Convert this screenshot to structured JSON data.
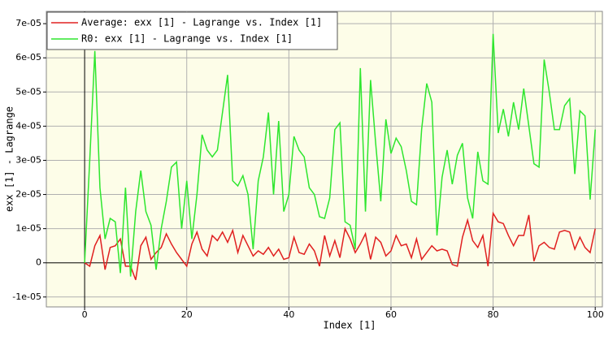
{
  "chart_data": {
    "type": "line",
    "x_label": "Index [1]",
    "y_label": "exx [1] - Lagrange",
    "x": [
      0,
      1,
      2,
      3,
      4,
      5,
      6,
      7,
      8,
      9,
      10,
      11,
      12,
      13,
      14,
      15,
      16,
      17,
      18,
      19,
      20,
      21,
      22,
      23,
      24,
      25,
      26,
      27,
      28,
      29,
      30,
      31,
      32,
      33,
      34,
      35,
      36,
      37,
      38,
      39,
      40,
      41,
      42,
      43,
      44,
      45,
      46,
      47,
      48,
      49,
      50,
      51,
      52,
      53,
      54,
      55,
      56,
      57,
      58,
      59,
      60,
      61,
      62,
      63,
      64,
      65,
      66,
      67,
      68,
      69,
      70,
      71,
      72,
      73,
      74,
      75,
      76,
      77,
      78,
      79,
      80,
      81,
      82,
      83,
      84,
      85,
      86,
      87,
      88,
      89,
      90,
      91,
      92,
      93,
      94,
      95,
      96,
      97,
      98,
      99,
      100
    ],
    "series": [
      {
        "name": "Average: exx [1] - Lagrange vs. Index [1]",
        "color": "#e02020",
        "values": [
          0,
          -1e-06,
          5e-06,
          8e-06,
          -2e-06,
          4.5e-06,
          5e-06,
          7e-06,
          -1e-06,
          -1e-06,
          -5e-06,
          5e-06,
          7.5e-06,
          1e-06,
          3e-06,
          4.5e-06,
          8.5e-06,
          5.5e-06,
          3e-06,
          1e-06,
          -1e-06,
          5.5e-06,
          9e-06,
          4e-06,
          2e-06,
          8e-06,
          6.5e-06,
          9e-06,
          6e-06,
          9.5e-06,
          3e-06,
          8e-06,
          5e-06,
          2e-06,
          3.5e-06,
          2.5e-06,
          4.5e-06,
          2e-06,
          4e-06,
          1e-06,
          1.5e-06,
          7.5e-06,
          3e-06,
          2.5e-06,
          5.5e-06,
          3.5e-06,
          -1e-06,
          8e-06,
          2e-06,
          6.5e-06,
          1.5e-06,
          1e-05,
          7e-06,
          3e-06,
          5.5e-06,
          8.5e-06,
          1e-06,
          7.5e-06,
          6e-06,
          2e-06,
          3.5e-06,
          8e-06,
          5e-06,
          5.5e-06,
          1.5e-06,
          7e-06,
          1e-06,
          3e-06,
          5e-06,
          3.5e-06,
          4e-06,
          3.5e-06,
          -5e-07,
          -1e-06,
          7.5e-06,
          1.25e-05,
          6.5e-06,
          4.5e-06,
          8e-06,
          -1e-06,
          1.45e-05,
          1.2e-05,
          1.15e-05,
          8e-06,
          5e-06,
          8e-06,
          8e-06,
          1.4e-05,
          5e-07,
          5e-06,
          6e-06,
          4.5e-06,
          4e-06,
          9e-06,
          9.5e-06,
          9e-06,
          4e-06,
          7.5e-06,
          4.5e-06,
          3e-06,
          1e-05
        ]
      },
      {
        "name": "R0: exx [1] - Lagrange vs. Index [1]",
        "color": "#2ee62e",
        "values": [
          0,
          3e-05,
          6.2e-05,
          2.2e-05,
          7e-06,
          1.3e-05,
          1.2e-05,
          -3e-06,
          2.2e-05,
          -4e-06,
          1.5e-05,
          2.7e-05,
          1.5e-05,
          1.1e-05,
          -2e-06,
          1e-05,
          1.8e-05,
          2.8e-05,
          2.95e-05,
          1e-05,
          2.4e-05,
          7e-06,
          2e-05,
          3.75e-05,
          3.3e-05,
          3.1e-05,
          3.3e-05,
          4.4e-05,
          5.5e-05,
          2.4e-05,
          2.25e-05,
          2.55e-05,
          2e-05,
          4e-06,
          2.4e-05,
          3.1e-05,
          4.4e-05,
          2e-05,
          4.15e-05,
          1.5e-05,
          2e-05,
          3.7e-05,
          3.3e-05,
          3.1e-05,
          2.2e-05,
          2e-05,
          1.35e-05,
          1.3e-05,
          1.9e-05,
          3.9e-05,
          4.1e-05,
          1.2e-05,
          1.1e-05,
          4e-06,
          5.7e-05,
          1.5e-05,
          5.35e-05,
          3.5e-05,
          1.8e-05,
          4.2e-05,
          3.2e-05,
          3.65e-05,
          3.4e-05,
          2.7e-05,
          1.8e-05,
          1.7e-05,
          3.9e-05,
          5.25e-05,
          4.7e-05,
          8e-06,
          2.5e-05,
          3.3e-05,
          2.3e-05,
          3.15e-05,
          3.5e-05,
          1.9e-05,
          1.3e-05,
          3.25e-05,
          2.4e-05,
          2.3e-05,
          6.7e-05,
          3.8e-05,
          4.5e-05,
          3.7e-05,
          4.7e-05,
          3.9e-05,
          5.1e-05,
          4e-05,
          2.9e-05,
          2.8e-05,
          5.95e-05,
          5e-05,
          3.9e-05,
          3.9e-05,
          4.6e-05,
          4.8e-05,
          2.6e-05,
          4.45e-05,
          4.3e-05,
          1.85e-05,
          3.9e-05
        ]
      }
    ],
    "xlim": [
      -7.5,
      101.4
    ],
    "ylim": [
      -1.29e-05,
      7.36e-05
    ],
    "xticks": [
      0,
      20,
      40,
      60,
      80,
      100
    ],
    "yticks": [
      {
        "value": -1e-05,
        "label": "-1e-05"
      },
      0,
      {
        "value": 1e-05,
        "label": "1e-05"
      },
      {
        "value": 2e-05,
        "label": "2e-05"
      },
      {
        "value": 3e-05,
        "label": "3e-05"
      },
      {
        "value": 4e-05,
        "label": "4e-05"
      },
      {
        "value": 5e-05,
        "label": "5e-05"
      },
      {
        "value": 6e-05,
        "label": "6e-05"
      },
      {
        "value": 7e-05,
        "label": "7e-05"
      }
    ],
    "grid": true,
    "legend": "upper-left"
  }
}
